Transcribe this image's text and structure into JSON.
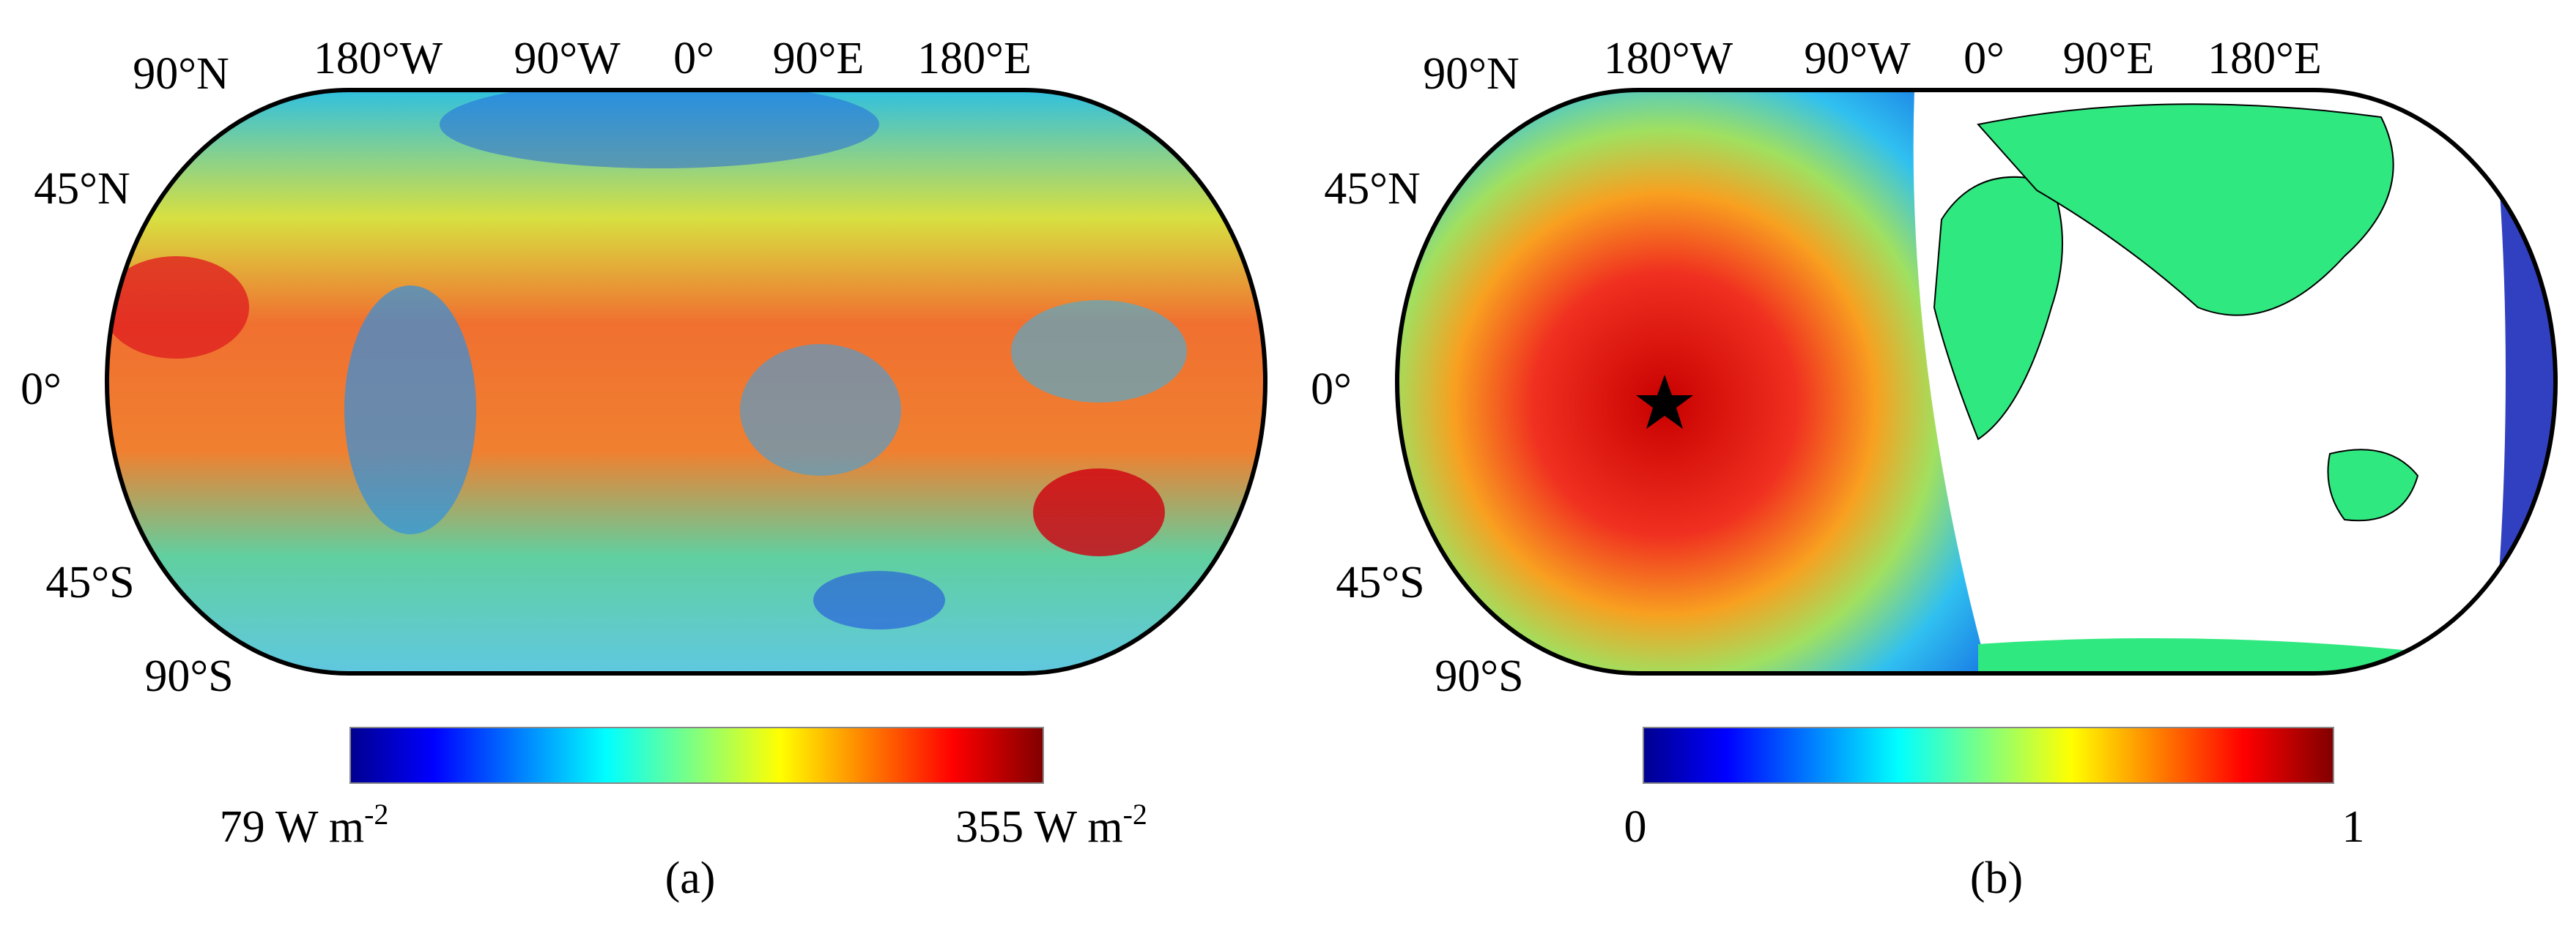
{
  "panel_a": {
    "lon_labels": [
      "180°W",
      "90°W",
      "0°",
      "90°E",
      "180°E"
    ],
    "lat_labels": [
      "90°N",
      "45°N",
      "0°",
      "45°S",
      "90°S"
    ],
    "colorbar": {
      "min": {
        "text": "79 W m",
        "sup": "-2"
      },
      "max": {
        "text": "355 W m",
        "sup": "-2"
      }
    },
    "label": "(a)"
  },
  "panel_b": {
    "lon_labels": [
      "180°W",
      "90°W",
      "0°",
      "90°E",
      "180°E"
    ],
    "lat_labels": [
      "90°N",
      "45°N",
      "0°",
      "45°S",
      "90°S"
    ],
    "colorbar": {
      "min": "0",
      "max": "1"
    },
    "label": "(b)"
  }
}
